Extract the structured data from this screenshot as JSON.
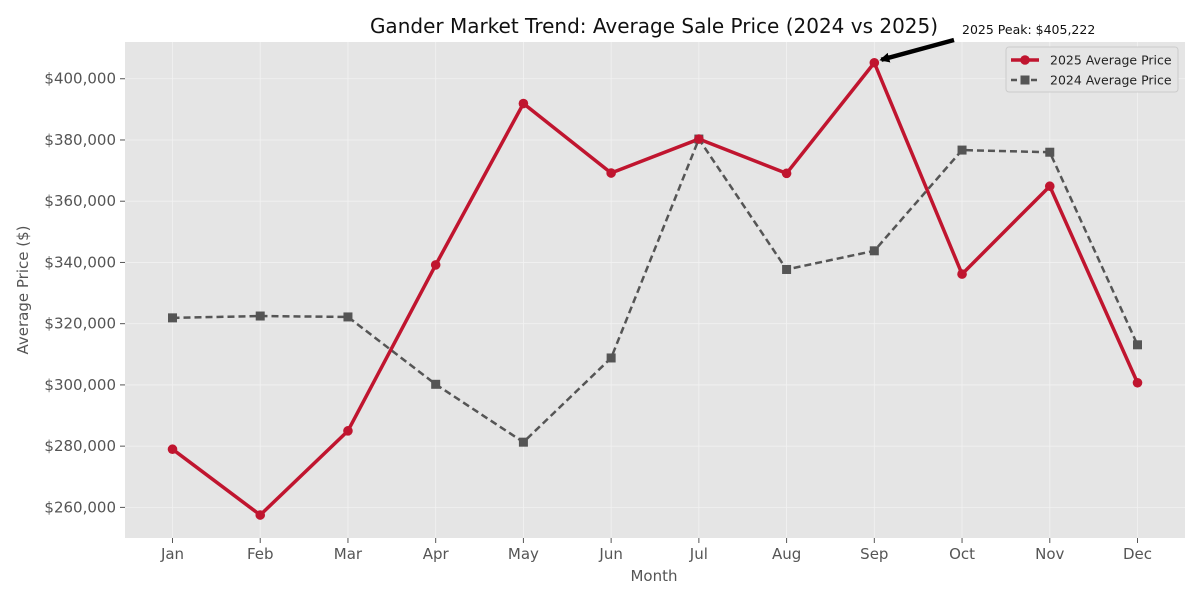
{
  "chart_data": {
    "type": "line",
    "title": "Gander Market Trend: Average Sale Price (2024 vs 2025)",
    "xlabel": "Month",
    "ylabel": "Average Price ($)",
    "categories": [
      "Jan",
      "Feb",
      "Mar",
      "Apr",
      "May",
      "Jun",
      "Jul",
      "Aug",
      "Sep",
      "Oct",
      "Nov",
      "Dec"
    ],
    "ylim": [
      250000,
      412000
    ],
    "yticks": [
      260000,
      280000,
      300000,
      320000,
      340000,
      360000,
      380000,
      400000
    ],
    "ytick_labels": [
      "$260,000",
      "$280,000",
      "$300,000",
      "$320,000",
      "$340,000",
      "$360,000",
      "$380,000",
      "$400,000"
    ],
    "grid": true,
    "legend_position": "top-right",
    "series": [
      {
        "name": "2025 Average Price",
        "color": "#c0152f",
        "line_style": "solid",
        "marker": "circle",
        "values": [
          279000,
          257500,
          285000,
          339200,
          391900,
          369200,
          380300,
          369100,
          405222,
          336200,
          364900,
          300700
        ]
      },
      {
        "name": "2024 Average Price",
        "color": "#555555",
        "line_style": "dashed",
        "marker": "square",
        "values": [
          321900,
          322500,
          322200,
          300200,
          281300,
          308800,
          380300,
          337700,
          343800,
          376700,
          376000,
          313100
        ]
      }
    ],
    "annotations": [
      {
        "text": "2025 Peak: $405,222",
        "series": 0,
        "category": "Sep",
        "value": 405222
      }
    ]
  }
}
